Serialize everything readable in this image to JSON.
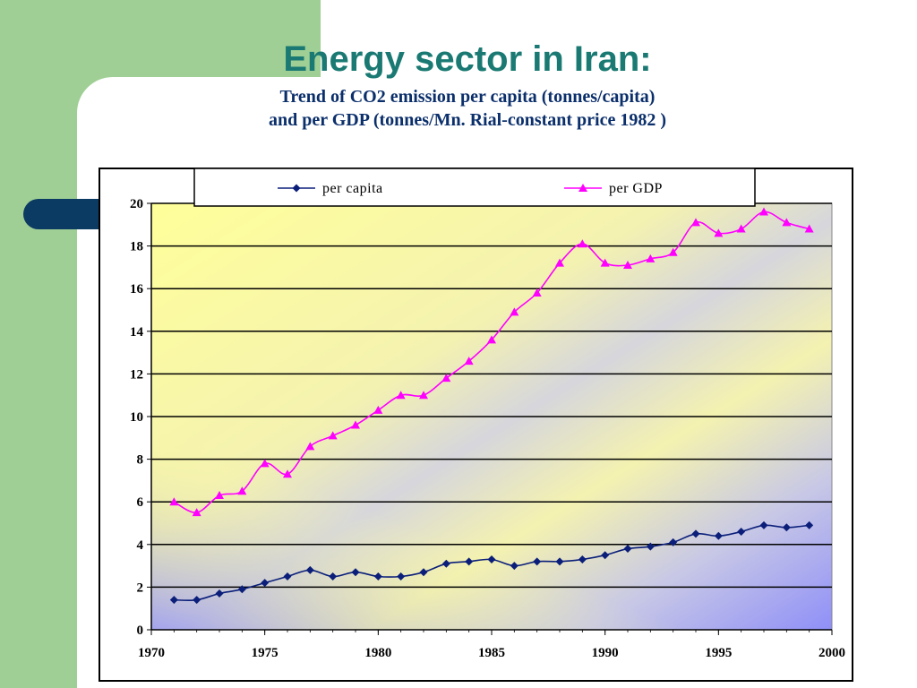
{
  "slide": {
    "title": "Energy sector in Iran:",
    "subtitle_line1": "Trend of CO2 emission per capita (tonnes/capita)",
    "subtitle_line2": "and per GDP (tonnes/Mn. Rial-constant price 1982 )"
  },
  "colors": {
    "title": "#1a7a73",
    "subtitle": "#0b2f6b",
    "per_capita": "#0b1f7a",
    "per_gdp": "#ff00ff",
    "deco_green": "#9fcf95",
    "deco_navy": "#0b3a63"
  },
  "chart_data": {
    "type": "line",
    "title": "",
    "xlabel": "",
    "ylabel": "",
    "xlim": [
      1970,
      2000
    ],
    "ylim": [
      0,
      20
    ],
    "x_ticks": [
      "1970",
      "1975",
      "1980",
      "1985",
      "1990",
      "1995",
      "2000"
    ],
    "y_ticks": [
      "0",
      "2",
      "4",
      "6",
      "8",
      "10",
      "12",
      "14",
      "16",
      "18",
      "20"
    ],
    "grid": "horizontal",
    "legend_position": "top",
    "x": [
      1971,
      1972,
      1973,
      1974,
      1975,
      1976,
      1977,
      1978,
      1979,
      1980,
      1981,
      1982,
      1983,
      1984,
      1985,
      1986,
      1987,
      1988,
      1989,
      1990,
      1991,
      1992,
      1993,
      1994,
      1995,
      1996,
      1997,
      1998,
      1999
    ],
    "series": [
      {
        "name": "per capita",
        "marker": "diamond",
        "values": [
          1.4,
          1.4,
          1.7,
          1.9,
          2.2,
          2.5,
          2.8,
          2.5,
          2.7,
          2.5,
          2.5,
          2.7,
          3.1,
          3.2,
          3.3,
          3.0,
          3.2,
          3.2,
          3.3,
          3.5,
          3.8,
          3.9,
          4.1,
          4.5,
          4.4,
          4.6,
          4.9,
          4.8,
          4.9
        ]
      },
      {
        "name": "per GDP",
        "marker": "triangle",
        "values": [
          6.0,
          5.5,
          6.3,
          6.5,
          7.8,
          7.3,
          8.6,
          9.1,
          9.6,
          10.3,
          11.0,
          11.0,
          11.8,
          12.6,
          13.6,
          14.9,
          15.8,
          17.2,
          18.1,
          17.2,
          17.1,
          17.4,
          17.7,
          19.1,
          18.6,
          18.8,
          19.6,
          19.1,
          18.8
        ]
      }
    ]
  }
}
